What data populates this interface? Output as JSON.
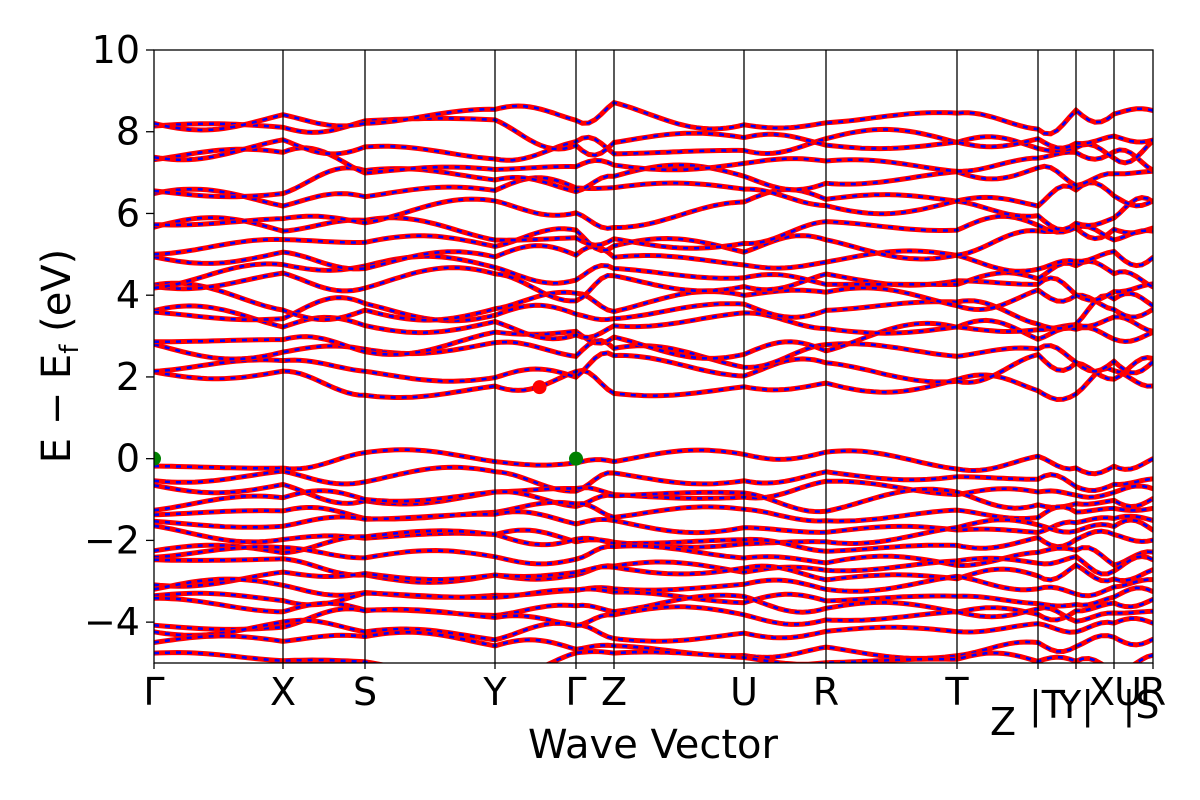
{
  "chart_data": {
    "type": "line",
    "xlabel": "Wave Vector",
    "ylabel": "E − E",
    "ylabel_sub": "f",
    "ylabel_unit": " (eV)",
    "ylim": [
      -5,
      10
    ],
    "yticks": [
      {
        "value": 10,
        "label": "10"
      },
      {
        "value": 8,
        "label": "8"
      },
      {
        "value": 6,
        "label": "6"
      },
      {
        "value": 4,
        "label": "4"
      },
      {
        "value": 2,
        "label": "2"
      },
      {
        "value": 0,
        "label": "0"
      },
      {
        "value": -2,
        "label": "−2"
      },
      {
        "value": -4,
        "label": "−4"
      }
    ],
    "kpath_ticks": [
      "Γ",
      "X",
      "S",
      "Y",
      "Γ",
      "Z",
      "U",
      "R",
      "T",
      "Z",
      "|T",
      "Y|",
      "X",
      "U",
      "|S",
      "R"
    ],
    "high_symmetry_points": [
      "Γ",
      "X",
      "S",
      "Y",
      "Γ",
      "Z",
      "U",
      "R",
      "T",
      "Z|T",
      "Y|X",
      "U|S",
      "R"
    ],
    "series": [
      {
        "color": "#ff0000",
        "style": "solid"
      },
      {
        "color": "#0000ff",
        "style": "dashed"
      }
    ],
    "conduction_band_levels": [
      1.85,
      2.2,
      2.5,
      2.9,
      3.3,
      3.6,
      3.9,
      4.2,
      4.5,
      4.9,
      5.3,
      5.6,
      6.0,
      6.4,
      6.8,
      7.2,
      7.6,
      8.0,
      8.4
    ],
    "valence_band_levels": [
      -0.05,
      -0.55,
      -0.8,
      -1.05,
      -1.3,
      -1.6,
      -1.85,
      -2.1,
      -2.4,
      -2.6,
      -2.85,
      -3.1,
      -3.4,
      -3.6,
      -3.9,
      -4.2,
      -4.6,
      -5.0
    ],
    "markers": [
      {
        "label": "VBM",
        "k_index": 0,
        "energy": 0.0,
        "color": "#008000"
      },
      {
        "label": "VBM",
        "k_index": 4,
        "energy": 0.0,
        "color": "#008000"
      },
      {
        "label": "CBM",
        "k_index": 3.55,
        "energy": 1.75,
        "color": "#ff0000"
      }
    ],
    "grid": false,
    "colors": {
      "spin_up": "#ff0000",
      "spin_down": "#0000ff",
      "vbm": "#008000",
      "cbm": "#ff0000"
    }
  }
}
